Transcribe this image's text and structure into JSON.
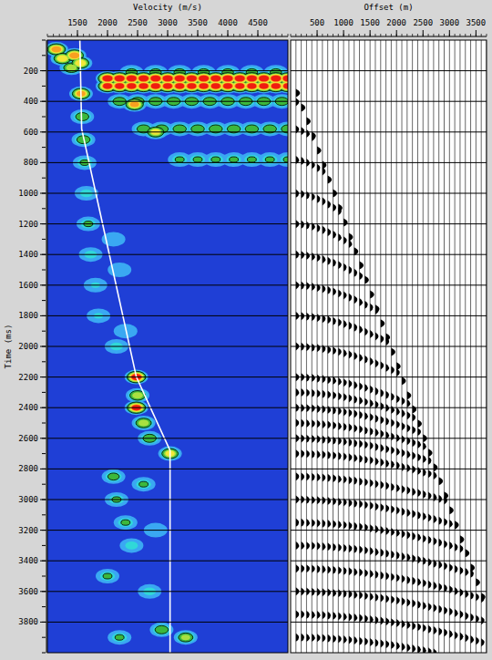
{
  "chart_data": [
    {
      "type": "heatmap",
      "xlabel": "Velocity (m/s)",
      "ylabel": "Time (ms)",
      "xlim": [
        1000,
        5000
      ],
      "xticks": [
        1500,
        2000,
        2500,
        3000,
        3500,
        4000,
        4500
      ],
      "ylim": [
        0,
        4000
      ],
      "yticks": [
        200,
        400,
        600,
        800,
        1000,
        1200,
        1400,
        1600,
        1800,
        2000,
        2200,
        2400,
        2600,
        2800,
        3000,
        3200,
        3400,
        3600,
        3800
      ],
      "grid": true,
      "color": "#ffffff",
      "picks_time": [
        0,
        580,
        2200,
        2680,
        4000
      ],
      "picks_velocity": [
        1540,
        1570,
        2480,
        3040,
        3040
      ],
      "semblance_range": [
        0,
        1
      ],
      "semblance": [
        [
          60,
          1150,
          0.9
        ],
        [
          120,
          1250,
          0.8
        ],
        [
          180,
          1400,
          0.7
        ],
        [
          100,
          1450,
          0.9
        ],
        [
          150,
          1550,
          0.8
        ],
        [
          210,
          2400,
          0.55
        ],
        [
          210,
          2800,
          0.55
        ],
        [
          210,
          3200,
          0.55
        ],
        [
          210,
          3600,
          0.55
        ],
        [
          210,
          4000,
          0.55
        ],
        [
          210,
          4400,
          0.55
        ],
        [
          210,
          4800,
          0.55
        ],
        [
          250,
          2000,
          1.0
        ],
        [
          250,
          2200,
          1.0
        ],
        [
          250,
          2400,
          1.0
        ],
        [
          250,
          2600,
          1.0
        ],
        [
          250,
          2800,
          1.0
        ],
        [
          250,
          3000,
          1.0
        ],
        [
          250,
          3200,
          1.0
        ],
        [
          250,
          3400,
          1.0
        ],
        [
          250,
          3600,
          1.0
        ],
        [
          250,
          3800,
          1.0
        ],
        [
          250,
          4000,
          1.0
        ],
        [
          250,
          4200,
          1.0
        ],
        [
          250,
          4400,
          1.0
        ],
        [
          250,
          4600,
          1.0
        ],
        [
          250,
          4800,
          1.0
        ],
        [
          250,
          5000,
          1.0
        ],
        [
          300,
          2000,
          0.95
        ],
        [
          300,
          2200,
          0.95
        ],
        [
          300,
          2400,
          0.95
        ],
        [
          300,
          2600,
          0.95
        ],
        [
          300,
          2800,
          0.95
        ],
        [
          300,
          3000,
          0.95
        ],
        [
          300,
          3200,
          0.95
        ],
        [
          300,
          3400,
          0.95
        ],
        [
          300,
          3600,
          0.95
        ],
        [
          300,
          3800,
          0.95
        ],
        [
          300,
          4000,
          0.95
        ],
        [
          300,
          4200,
          0.95
        ],
        [
          300,
          4400,
          0.95
        ],
        [
          300,
          4600,
          0.95
        ],
        [
          300,
          4800,
          0.95
        ],
        [
          300,
          5000,
          0.95
        ],
        [
          350,
          1560,
          0.85
        ],
        [
          400,
          2200,
          0.6
        ],
        [
          400,
          2500,
          0.6
        ],
        [
          400,
          2800,
          0.6
        ],
        [
          400,
          3100,
          0.6
        ],
        [
          400,
          3400,
          0.6
        ],
        [
          400,
          3700,
          0.6
        ],
        [
          400,
          4000,
          0.6
        ],
        [
          400,
          4300,
          0.6
        ],
        [
          400,
          4600,
          0.6
        ],
        [
          400,
          4900,
          0.6
        ],
        [
          420,
          2450,
          0.85
        ],
        [
          500,
          1580,
          0.6
        ],
        [
          580,
          2600,
          0.6
        ],
        [
          580,
          2900,
          0.6
        ],
        [
          580,
          3200,
          0.6
        ],
        [
          580,
          3500,
          0.6
        ],
        [
          580,
          3800,
          0.6
        ],
        [
          580,
          4100,
          0.6
        ],
        [
          580,
          4400,
          0.6
        ],
        [
          580,
          4700,
          0.6
        ],
        [
          580,
          5000,
          0.6
        ],
        [
          600,
          2800,
          0.75
        ],
        [
          650,
          1600,
          0.6
        ],
        [
          780,
          3200,
          0.5
        ],
        [
          780,
          3500,
          0.5
        ],
        [
          780,
          3800,
          0.5
        ],
        [
          780,
          4100,
          0.5
        ],
        [
          780,
          4400,
          0.5
        ],
        [
          780,
          4700,
          0.5
        ],
        [
          780,
          5000,
          0.5
        ],
        [
          800,
          1620,
          0.5
        ],
        [
          1000,
          1650,
          0.45
        ],
        [
          1200,
          1680,
          0.5
        ],
        [
          1300,
          2100,
          0.3
        ],
        [
          1400,
          1720,
          0.45
        ],
        [
          1500,
          2200,
          0.3
        ],
        [
          1600,
          1800,
          0.4
        ],
        [
          1800,
          1850,
          0.4
        ],
        [
          1900,
          2300,
          0.3
        ],
        [
          2000,
          2150,
          0.45
        ],
        [
          2200,
          2480,
          1.0
        ],
        [
          2320,
          2500,
          0.7
        ],
        [
          2400,
          2480,
          0.95
        ],
        [
          2500,
          2600,
          0.7
        ],
        [
          2600,
          2700,
          0.6
        ],
        [
          2700,
          3040,
          0.75
        ],
        [
          2850,
          2100,
          0.55
        ],
        [
          2900,
          2600,
          0.5
        ],
        [
          3000,
          2150,
          0.5
        ],
        [
          3150,
          2300,
          0.5
        ],
        [
          3200,
          2800,
          0.35
        ],
        [
          3300,
          2400,
          0.45
        ],
        [
          3500,
          2000,
          0.5
        ],
        [
          3600,
          2700,
          0.45
        ],
        [
          3850,
          2900,
          0.6
        ],
        [
          3900,
          3300,
          0.65
        ],
        [
          3900,
          2200,
          0.5
        ]
      ]
    },
    {
      "type": "seismic_gather",
      "xlabel": "Offset (m)",
      "xlim": [
        0,
        3700
      ],
      "xticks": [
        500,
        1000,
        1500,
        2000,
        2500,
        3000,
        3500
      ],
      "ylim": [
        0,
        4000
      ],
      "yticks": [
        200,
        400,
        600,
        800,
        1000,
        1200,
        1400,
        1600,
        1800,
        2000,
        2200,
        2400,
        2600,
        2800,
        3000,
        3200,
        3400,
        3600,
        3800
      ],
      "grid": true,
      "tick_labels": "x",
      "color": "#000000",
      "offsets": [
        100,
        200,
        300,
        400,
        500,
        600,
        700,
        800,
        900,
        1000,
        1100,
        1200,
        1300,
        1400,
        1500,
        1600,
        1700,
        1800,
        1900,
        2000,
        2100,
        2200,
        2300,
        2400,
        2500,
        2600,
        2700,
        2800,
        2900,
        3000,
        3100,
        3200,
        3300,
        3400,
        3500,
        3600,
        3700
      ],
      "mute_times": [
        345,
        440,
        530,
        625,
        720,
        815,
        910,
        1000,
        1095,
        1190,
        1285,
        1380,
        1470,
        1565,
        1660,
        1755,
        1850,
        1940,
        2035,
        2130,
        2225,
        2320,
        2410,
        2505,
        2600,
        2695,
        2790,
        2880,
        2975,
        3070,
        3165,
        3260,
        3350,
        3445,
        3540,
        3635,
        3730
      ],
      "reflection_t0": [
        300,
        400,
        580,
        780,
        1000,
        1200,
        1400,
        1600,
        1800,
        2000,
        2200,
        2300,
        2400,
        2500,
        2600,
        2700,
        2850,
        3000,
        3150,
        3300,
        3450,
        3600,
        3750,
        3900
      ],
      "reflection_velocity": [
        1540,
        1550,
        1570,
        1680,
        1805,
        1920,
        2030,
        2145,
        2255,
        2370,
        2480,
        2595,
        2710,
        2830,
        2945,
        3040,
        3040,
        3040,
        3040,
        3040,
        3040,
        3040,
        3040,
        3040
      ]
    }
  ]
}
